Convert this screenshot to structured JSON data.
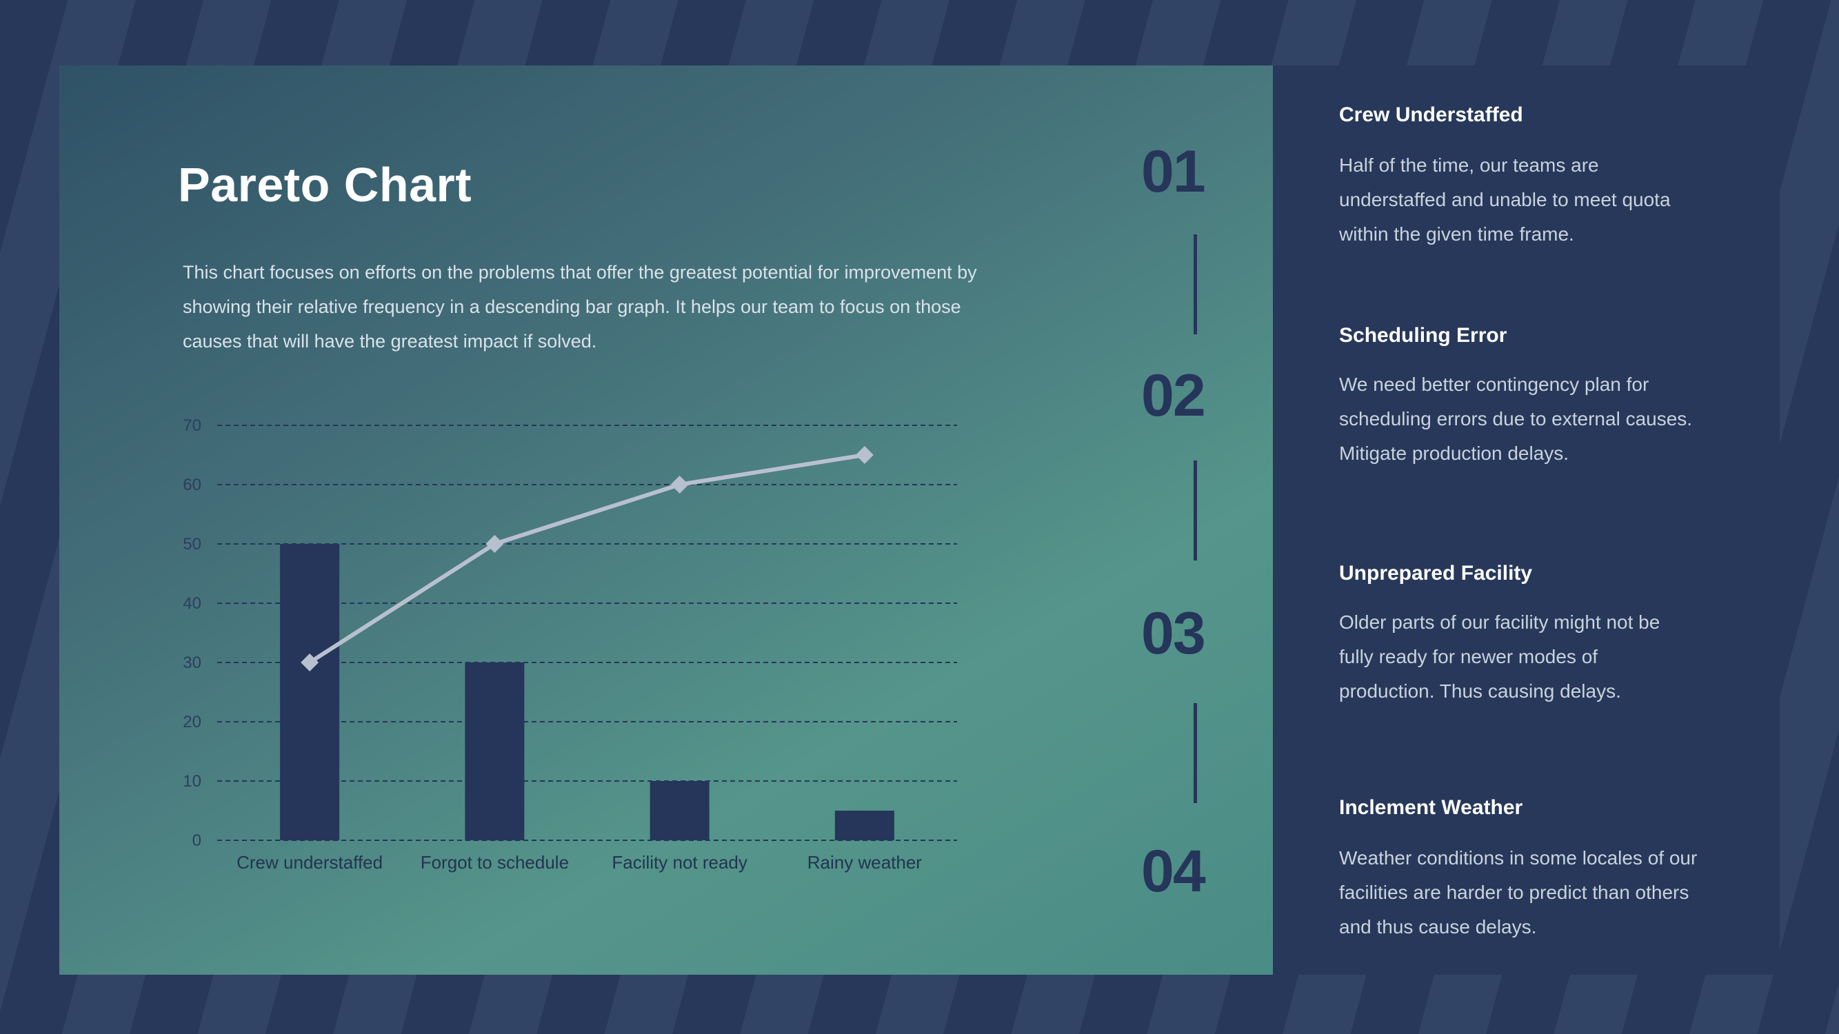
{
  "slide": {
    "title": "Pareto Chart",
    "description": "This chart focuses on efforts on the problems that offer the greatest potential for improvement by showing their relative frequency in a descending bar graph. It helps our team to focus on those causes that will have the greatest impact if solved."
  },
  "colors": {
    "background": "#27385a",
    "panel_teal": "#4a8c86",
    "bar": "#26355a",
    "line": "#b8c0d0",
    "grid": "#26355a"
  },
  "chart_data": {
    "type": "bar",
    "categories": [
      "Crew understaffed",
      "Forgot to schedule",
      "Facility not ready",
      "Rainy weather"
    ],
    "series": [
      {
        "type": "bar",
        "values": [
          50,
          30,
          10,
          5
        ]
      },
      {
        "type": "line",
        "marker": "diamond",
        "values": [
          30,
          50,
          60,
          65
        ]
      }
    ],
    "ylim": [
      0,
      70
    ],
    "yticks": [
      0,
      10,
      20,
      30,
      40,
      50,
      60,
      70
    ],
    "grid": true,
    "legend": "none"
  },
  "steps": [
    {
      "number": "01",
      "heading": "Crew Understaffed",
      "text": "Half of the time, our teams are understaffed and unable to meet quota within the given time frame."
    },
    {
      "number": "02",
      "heading": "Scheduling Error",
      "text": "We need better contingency plan for scheduling errors due to external causes. Mitigate production delays."
    },
    {
      "number": "03",
      "heading": "Unprepared Facility",
      "text": "Older parts of our facility might not be fully ready for newer modes of production. Thus causing delays."
    },
    {
      "number": "04",
      "heading": "Inclement Weather",
      "text": "Weather conditions in some locales of our facilities are harder to predict than others and thus cause delays."
    }
  ]
}
